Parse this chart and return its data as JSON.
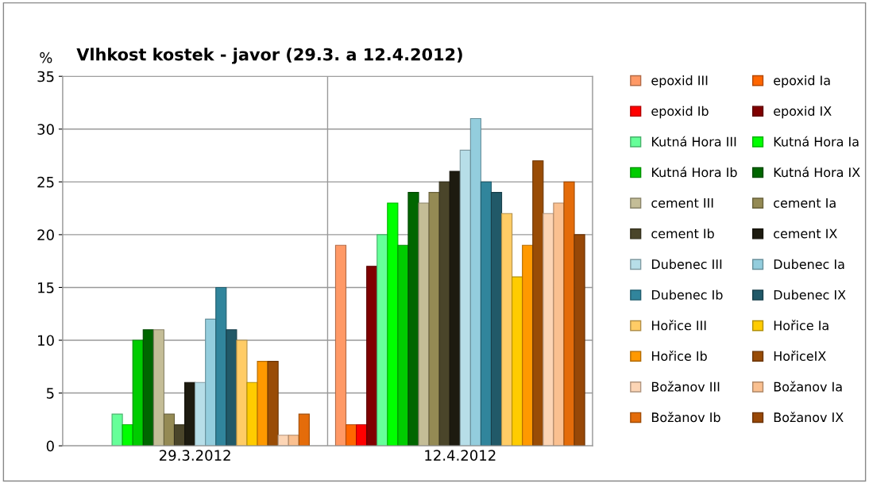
{
  "chart_data": {
    "type": "bar",
    "title": "Vlhkost kostek - javor (29.3. a 12.4.2012)",
    "ylabel": "%",
    "categories": [
      "29.3.2012",
      "12.4.2012"
    ],
    "ylim": [
      0,
      35
    ],
    "yticks": [
      0,
      5,
      10,
      15,
      20,
      25,
      30,
      35
    ],
    "grid": true,
    "legend": "right",
    "series": [
      {
        "name": "epoxid III",
        "color": "#ff9966",
        "values": [
          null,
          19
        ]
      },
      {
        "name": "epoxid Ia",
        "color": "#ff6600",
        "values": [
          null,
          2
        ]
      },
      {
        "name": "epoxid Ib",
        "color": "#ff0000",
        "values": [
          null,
          2
        ]
      },
      {
        "name": "epoxid IX",
        "color": "#800000",
        "values": [
          null,
          17
        ]
      },
      {
        "name": "Kutná Hora III",
        "color": "#66ff99",
        "values": [
          3,
          20
        ]
      },
      {
        "name": "Kutná Hora Ia",
        "color": "#00ff00",
        "values": [
          2,
          23
        ]
      },
      {
        "name": "Kutná Hora Ib",
        "color": "#00cc00",
        "values": [
          10,
          19
        ]
      },
      {
        "name": "Kutná Hora IX",
        "color": "#006600",
        "values": [
          11,
          24
        ]
      },
      {
        "name": "cement III",
        "color": "#c4bd97",
        "values": [
          11,
          23
        ]
      },
      {
        "name": "cement Ia",
        "color": "#948a54",
        "values": [
          3,
          24
        ]
      },
      {
        "name": "cement Ib",
        "color": "#4a452a",
        "values": [
          2,
          25
        ]
      },
      {
        "name": "cement IX",
        "color": "#1d1b10",
        "values": [
          6,
          26
        ]
      },
      {
        "name": "Dubenec III",
        "color": "#b7dee8",
        "values": [
          6,
          28
        ]
      },
      {
        "name": "Dubenec Ia",
        "color": "#93cddd",
        "values": [
          12,
          31
        ]
      },
      {
        "name": "Dubenec Ib",
        "color": "#31859c",
        "values": [
          15,
          25
        ]
      },
      {
        "name": "Dubenec IX",
        "color": "#215968",
        "values": [
          11,
          24
        ]
      },
      {
        "name": "Hořice III",
        "color": "#ffcc66",
        "values": [
          10,
          22
        ]
      },
      {
        "name": "Hořice Ia",
        "color": "#ffcc00",
        "values": [
          6,
          16
        ]
      },
      {
        "name": "Hořice Ib",
        "color": "#ff9900",
        "values": [
          8,
          19
        ]
      },
      {
        "name": "HořiceIX",
        "color": "#994c06",
        "values": [
          8,
          27
        ]
      },
      {
        "name": "Božanov III",
        "color": "#fcd5b5",
        "values": [
          1,
          22
        ]
      },
      {
        "name": "Božanov Ia",
        "color": "#fac090",
        "values": [
          1,
          23
        ]
      },
      {
        "name": "Božanov Ib",
        "color": "#e46c0a",
        "values": [
          3,
          25
        ]
      },
      {
        "name": "Božanov IX",
        "color": "#984807",
        "values": [
          null,
          20
        ]
      }
    ]
  }
}
